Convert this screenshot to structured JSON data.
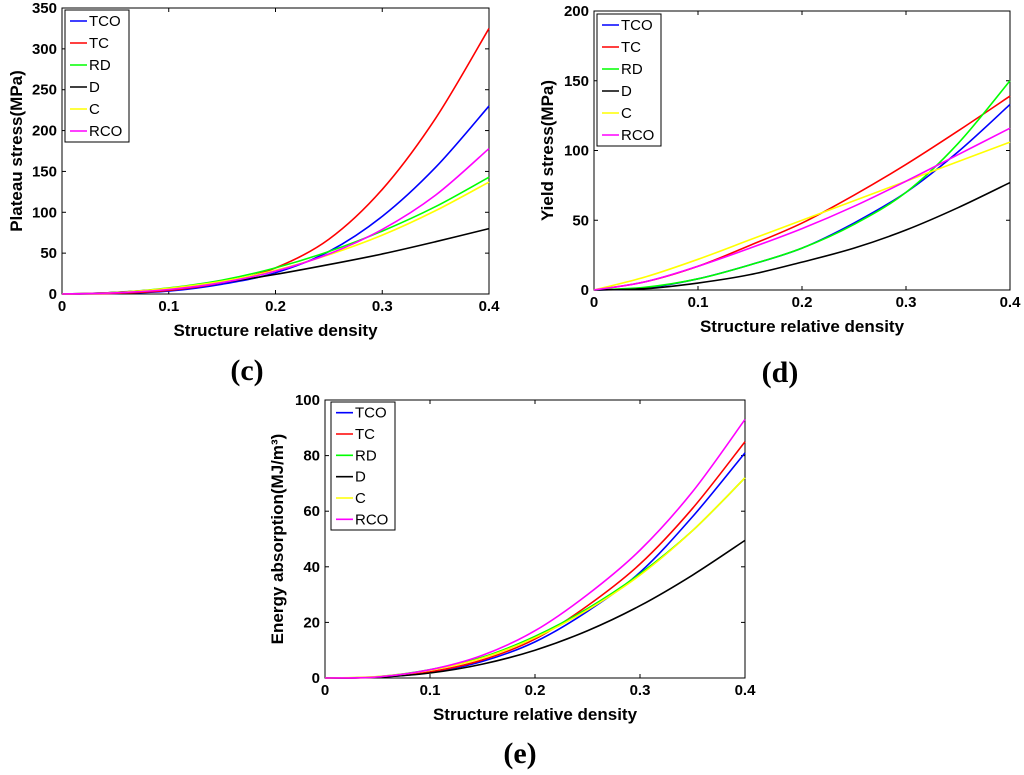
{
  "chart_data": [
    {
      "id": "c",
      "panel_label": "(c)",
      "type": "line",
      "xlabel": "Structure relative density",
      "ylabel": "Plateau stress(MPa)",
      "xlim": [
        0,
        0.4
      ],
      "ylim": [
        0,
        350
      ],
      "xticks": [
        "0",
        "0.1",
        "0.2",
        "0.3",
        "0.4"
      ],
      "xtick_values": [
        0,
        0.1,
        0.2,
        0.3,
        0.4
      ],
      "yticks": [
        "0",
        "50",
        "100",
        "150",
        "200",
        "250",
        "300",
        "350"
      ],
      "ytick_values": [
        0,
        50,
        100,
        150,
        200,
        250,
        300,
        350
      ],
      "legend_position": "top-left",
      "x": [
        0,
        0.05,
        0.1,
        0.15,
        0.2,
        0.25,
        0.3,
        0.35,
        0.4
      ],
      "series": [
        {
          "name": "TCO",
          "color": "#0000ff",
          "values": [
            0,
            0.7,
            3.5,
            12,
            26,
            52,
            95,
            155,
            230
          ]
        },
        {
          "name": "TC",
          "color": "#ff0000",
          "values": [
            0,
            0.8,
            4.5,
            14,
            32,
            67,
            128,
            215,
            325
          ]
        },
        {
          "name": "RD",
          "color": "#00ff00",
          "values": [
            0,
            2,
            7.5,
            17,
            32,
            52,
            77,
            107,
            143
          ]
        },
        {
          "name": "D",
          "color": "#000000",
          "values": [
            0,
            2,
            6.5,
            14,
            24,
            36,
            49,
            64,
            80
          ]
        },
        {
          "name": "C",
          "color": "#ffff00",
          "values": [
            0,
            1.8,
            7,
            15.5,
            29,
            48,
            72,
            102,
            137
          ]
        },
        {
          "name": "RCO",
          "color": "#ff00ff",
          "values": [
            0,
            1.5,
            5.5,
            14,
            28,
            49,
            79,
            121,
            178
          ]
        }
      ]
    },
    {
      "id": "d",
      "panel_label": "(d)",
      "type": "line",
      "xlabel": "Structure relative density",
      "ylabel": "Yield stress(MPa)",
      "xlim": [
        0,
        0.4
      ],
      "ylim": [
        0,
        200
      ],
      "xticks": [
        "0",
        "0.1",
        "0.2",
        "0.3",
        "0.4"
      ],
      "xtick_values": [
        0,
        0.1,
        0.2,
        0.3,
        0.4
      ],
      "yticks": [
        "0",
        "50",
        "100",
        "150",
        "200"
      ],
      "ytick_values": [
        0,
        50,
        100,
        150,
        200
      ],
      "legend_position": "top-left",
      "x": [
        0,
        0.05,
        0.1,
        0.15,
        0.2,
        0.25,
        0.3,
        0.35,
        0.4
      ],
      "series": [
        {
          "name": "TCO",
          "color": "#0000ff",
          "values": [
            0,
            1.5,
            8,
            18,
            30,
            48,
            70,
            99,
            133
          ]
        },
        {
          "name": "TC",
          "color": "#ff0000",
          "values": [
            0,
            6,
            17,
            32,
            48,
            68,
            90,
            114,
            139
          ]
        },
        {
          "name": "RD",
          "color": "#00ff00",
          "values": [
            0,
            2,
            8,
            18,
            30,
            47,
            70,
            105,
            150
          ]
        },
        {
          "name": "D",
          "color": "#000000",
          "values": [
            0,
            1,
            5,
            11,
            20,
            30,
            43,
            59,
            77
          ]
        },
        {
          "name": "C",
          "color": "#ffff00",
          "values": [
            0,
            9.5,
            22,
            36,
            50,
            64,
            78,
            92,
            106
          ]
        },
        {
          "name": "RCO",
          "color": "#ff00ff",
          "values": [
            0,
            6,
            17,
            30,
            44,
            60,
            78,
            97,
            116
          ]
        }
      ]
    },
    {
      "id": "e",
      "panel_label": "(e)",
      "type": "line",
      "xlabel": "Structure relative density",
      "ylabel": "Energy absorption(MJ/m³)",
      "xlim": [
        0,
        0.4
      ],
      "ylim": [
        0,
        100
      ],
      "xticks": [
        "0",
        "0.1",
        "0.2",
        "0.3",
        "0.4"
      ],
      "xtick_values": [
        0,
        0.1,
        0.2,
        0.3,
        0.4
      ],
      "yticks": [
        "0",
        "20",
        "40",
        "60",
        "80",
        "100"
      ],
      "ytick_values": [
        0,
        20,
        40,
        60,
        80,
        100
      ],
      "legend_position": "top-left",
      "x": [
        0,
        0.05,
        0.1,
        0.15,
        0.2,
        0.25,
        0.3,
        0.35,
        0.4
      ],
      "series": [
        {
          "name": "TCO",
          "color": "#0000ff",
          "values": [
            0,
            0.3,
            2,
            6,
            13,
            24,
            38,
            58,
            81
          ]
        },
        {
          "name": "TC",
          "color": "#ff0000",
          "values": [
            0,
            0.3,
            2.2,
            6.5,
            14,
            26,
            41,
            61,
            85
          ]
        },
        {
          "name": "RD",
          "color": "#00ff00",
          "values": [
            0,
            0.5,
            3,
            7.5,
            15,
            25,
            37.5,
            53,
            72
          ]
        },
        {
          "name": "D",
          "color": "#000000",
          "values": [
            0,
            0.3,
            1.8,
            5,
            10,
            17,
            26,
            37,
            49.5
          ]
        },
        {
          "name": "C",
          "color": "#ffff00",
          "values": [
            0,
            0.5,
            2.8,
            7.2,
            14.5,
            24.5,
            37,
            53,
            72
          ]
        },
        {
          "name": "RCO",
          "color": "#ff00ff",
          "values": [
            0,
            0.4,
            3,
            8.2,
            17,
            30,
            46,
            67,
            93
          ]
        }
      ]
    }
  ]
}
